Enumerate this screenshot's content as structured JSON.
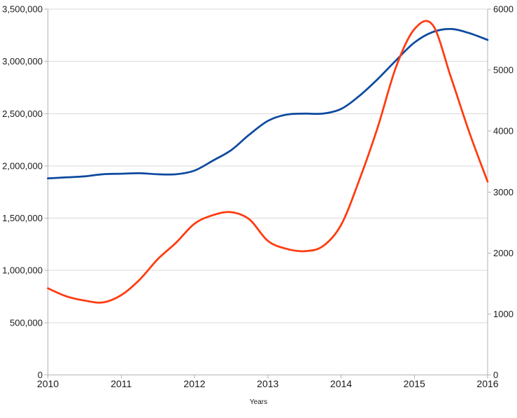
{
  "chart_data": {
    "type": "line",
    "xlabel": "Years",
    "legend": "none",
    "grid": true,
    "x_axis": {
      "min": 2010,
      "max": 2016,
      "tick_labels": [
        "2010",
        "2011",
        "2012",
        "2013",
        "2014",
        "2015",
        "2016"
      ]
    },
    "left_axis": {
      "min": 0,
      "max": 3500000,
      "tick_step": 500000,
      "tick_labels": [
        "0",
        "500,000",
        "1,000,000",
        "1,500,000",
        "2,000,000",
        "2,500,000",
        "3,000,000",
        "3,500,000"
      ]
    },
    "right_axis": {
      "min": 0,
      "max": 6000,
      "tick_step": 1000,
      "tick_labels": [
        "0",
        "1000",
        "2000",
        "3000",
        "4000",
        "5000",
        "6000"
      ]
    },
    "series": [
      {
        "name": "blue-series",
        "axis": "left",
        "color": "#0d4a9f",
        "x": [
          2010,
          2010.25,
          2010.5,
          2010.75,
          2011,
          2011.25,
          2011.5,
          2011.75,
          2012,
          2012.25,
          2012.5,
          2012.75,
          2013,
          2013.25,
          2013.5,
          2013.75,
          2014,
          2014.25,
          2014.5,
          2014.75,
          2015,
          2015.25,
          2015.5,
          2015.75,
          2016
        ],
        "values": [
          1880000,
          1890000,
          1900000,
          1920000,
          1925000,
          1930000,
          1920000,
          1920000,
          1955000,
          2050000,
          2150000,
          2300000,
          2430000,
          2490000,
          2500000,
          2500000,
          2545000,
          2670000,
          2830000,
          3010000,
          3180000,
          3280000,
          3310000,
          3270000,
          3205000
        ]
      },
      {
        "name": "red-series",
        "axis": "right",
        "color": "#ff3b10",
        "x": [
          2010,
          2010.25,
          2010.5,
          2010.75,
          2011,
          2011.25,
          2011.5,
          2011.75,
          2012,
          2012.25,
          2012.5,
          2012.75,
          2013,
          2013.25,
          2013.5,
          2013.75,
          2014,
          2014.25,
          2014.5,
          2014.75,
          2015,
          2015.25,
          2015.5,
          2015.75,
          2016
        ],
        "values": [
          1420,
          1290,
          1220,
          1190,
          1310,
          1560,
          1900,
          2170,
          2480,
          2620,
          2670,
          2550,
          2200,
          2070,
          2030,
          2110,
          2460,
          3200,
          4060,
          5050,
          5670,
          5740,
          4880,
          3980,
          3170
        ]
      }
    ],
    "colors": {
      "gridline": "#d9d9d9",
      "axis": "#b3b3b3",
      "text": "#1a1a1a"
    }
  }
}
